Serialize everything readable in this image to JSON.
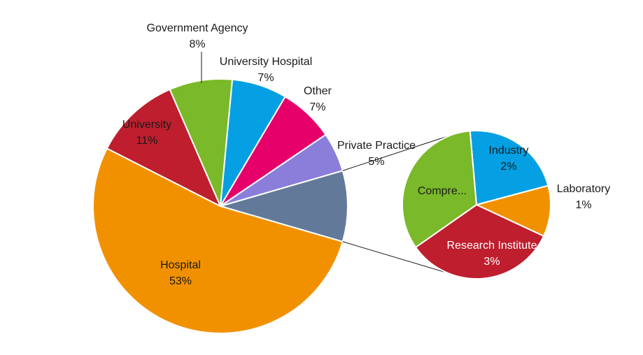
{
  "chart_data": {
    "type": "pie",
    "subtype": "pie-of-pie",
    "main": {
      "slices": [
        {
          "name": "Hospital",
          "value": 53,
          "label": "53%",
          "color": "#F29100"
        },
        {
          "name": "University",
          "value": 11,
          "label": "11%",
          "color": "#BE1E2D"
        },
        {
          "name": "Government Agency",
          "value": 8,
          "label": "8%",
          "color": "#7AB929"
        },
        {
          "name": "University Hospital",
          "value": 7,
          "label": "7%",
          "color": "#059FE3"
        },
        {
          "name": "Other",
          "value": 7,
          "label": "7%",
          "color": "#E5006A"
        },
        {
          "name": "Private Practice",
          "value": 5,
          "label": "5%",
          "color": "#8B7EDB"
        },
        {
          "name": "",
          "value": 9,
          "label": "",
          "color": "#62799A"
        }
      ]
    },
    "secondary": {
      "slices": [
        {
          "name": "Industry",
          "value": 2,
          "label": "2%",
          "color": "#059FE3"
        },
        {
          "name": "Laboratory",
          "value": 1,
          "label": "1%",
          "color": "#F29100"
        },
        {
          "name": "Research Institute",
          "value": 3,
          "label": "3%",
          "color": "#BE1E2D"
        },
        {
          "name": "Compre...",
          "value": 3,
          "label": "",
          "color": "#7AB929"
        }
      ]
    }
  }
}
